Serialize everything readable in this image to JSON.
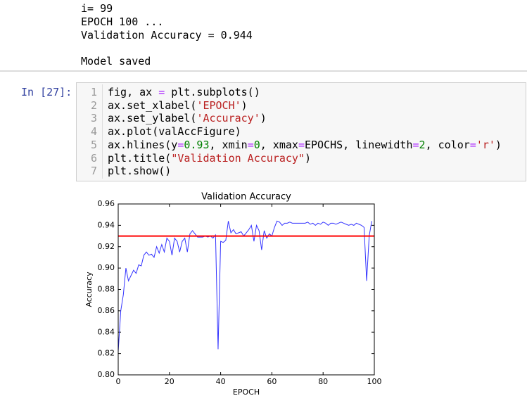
{
  "output": {
    "lines": [
      "i= 99",
      "EPOCH 100 ...",
      "Validation Accuracy = 0.944"
    ],
    "saved": "Model saved"
  },
  "cell": {
    "prompt": "In [27]:",
    "line_numbers": [
      1,
      2,
      3,
      4,
      5,
      6,
      7
    ],
    "code": [
      "fig, ax = plt.subplots()",
      "ax.set_xlabel('EPOCH')",
      "ax.set_ylabel('Accuracy')",
      "ax.plot(valAccFigure)",
      "ax.hlines(y=0.93, xmin=0, xmax=EPOCHS, linewidth=2, color='r')",
      "plt.title(\"Validation Accuracy\")",
      "plt.show()"
    ]
  },
  "chart_data": {
    "type": "line",
    "title": "Validation Accuracy",
    "x_label": "EPOCH",
    "y_label": "Accuracy",
    "x": [
      0,
      1,
      2,
      3,
      4,
      5,
      6,
      7,
      8,
      9,
      10,
      11,
      12,
      13,
      14,
      15,
      16,
      17,
      18,
      19,
      20,
      21,
      22,
      23,
      24,
      25,
      26,
      27,
      28,
      29,
      30,
      31,
      32,
      33,
      34,
      35,
      36,
      37,
      38,
      39,
      40,
      41,
      42,
      43,
      44,
      45,
      46,
      47,
      48,
      49,
      50,
      51,
      52,
      53,
      54,
      55,
      56,
      57,
      58,
      59,
      60,
      61,
      62,
      63,
      64,
      65,
      66,
      67,
      68,
      69,
      70,
      71,
      72,
      73,
      74,
      75,
      76,
      77,
      78,
      79,
      80,
      81,
      82,
      83,
      84,
      85,
      86,
      87,
      88,
      89,
      90,
      91,
      92,
      93,
      94,
      95,
      96,
      97,
      98,
      99
    ],
    "series": [
      {
        "color": "#3333ff",
        "values": [
          0.822,
          0.86,
          0.875,
          0.9,
          0.888,
          0.893,
          0.898,
          0.895,
          0.903,
          0.902,
          0.912,
          0.915,
          0.912,
          0.913,
          0.91,
          0.92,
          0.914,
          0.922,
          0.915,
          0.928,
          0.925,
          0.912,
          0.928,
          0.925,
          0.915,
          0.925,
          0.928,
          0.915,
          0.932,
          0.935,
          0.932,
          0.929,
          0.929,
          0.929,
          0.93,
          0.929,
          0.93,
          0.928,
          0.931,
          0.824,
          0.925,
          0.924,
          0.926,
          0.944,
          0.933,
          0.936,
          0.932,
          0.933,
          0.934,
          0.93,
          0.933,
          0.936,
          0.94,
          0.925,
          0.94,
          0.935,
          0.917,
          0.935,
          0.928,
          0.932,
          0.93,
          0.938,
          0.944,
          0.943,
          0.94,
          0.942,
          0.942,
          0.943,
          0.942,
          0.942,
          0.942,
          0.942,
          0.942,
          0.942,
          0.943,
          0.941,
          0.942,
          0.94,
          0.942,
          0.941,
          0.943,
          0.942,
          0.94,
          0.942,
          0.942,
          0.941,
          0.942,
          0.943,
          0.942,
          0.941,
          0.94,
          0.941,
          0.94,
          0.942,
          0.941,
          0.94,
          0.938,
          0.888,
          0.93,
          0.944
        ]
      }
    ],
    "hline": {
      "y": 0.93,
      "xmin": 0,
      "xmax": 100,
      "color": "#ff0000"
    },
    "xlim": [
      0,
      100
    ],
    "xticks": [
      0,
      20,
      40,
      60,
      80,
      100
    ],
    "ylim": [
      0.8,
      0.96
    ],
    "yticks": [
      {
        "value": 0.8,
        "label": "0.80"
      },
      0.82,
      0.84,
      0.86,
      0.88,
      {
        "value": 0.9,
        "label": "0.90"
      },
      0.92,
      0.94,
      0.96
    ]
  }
}
